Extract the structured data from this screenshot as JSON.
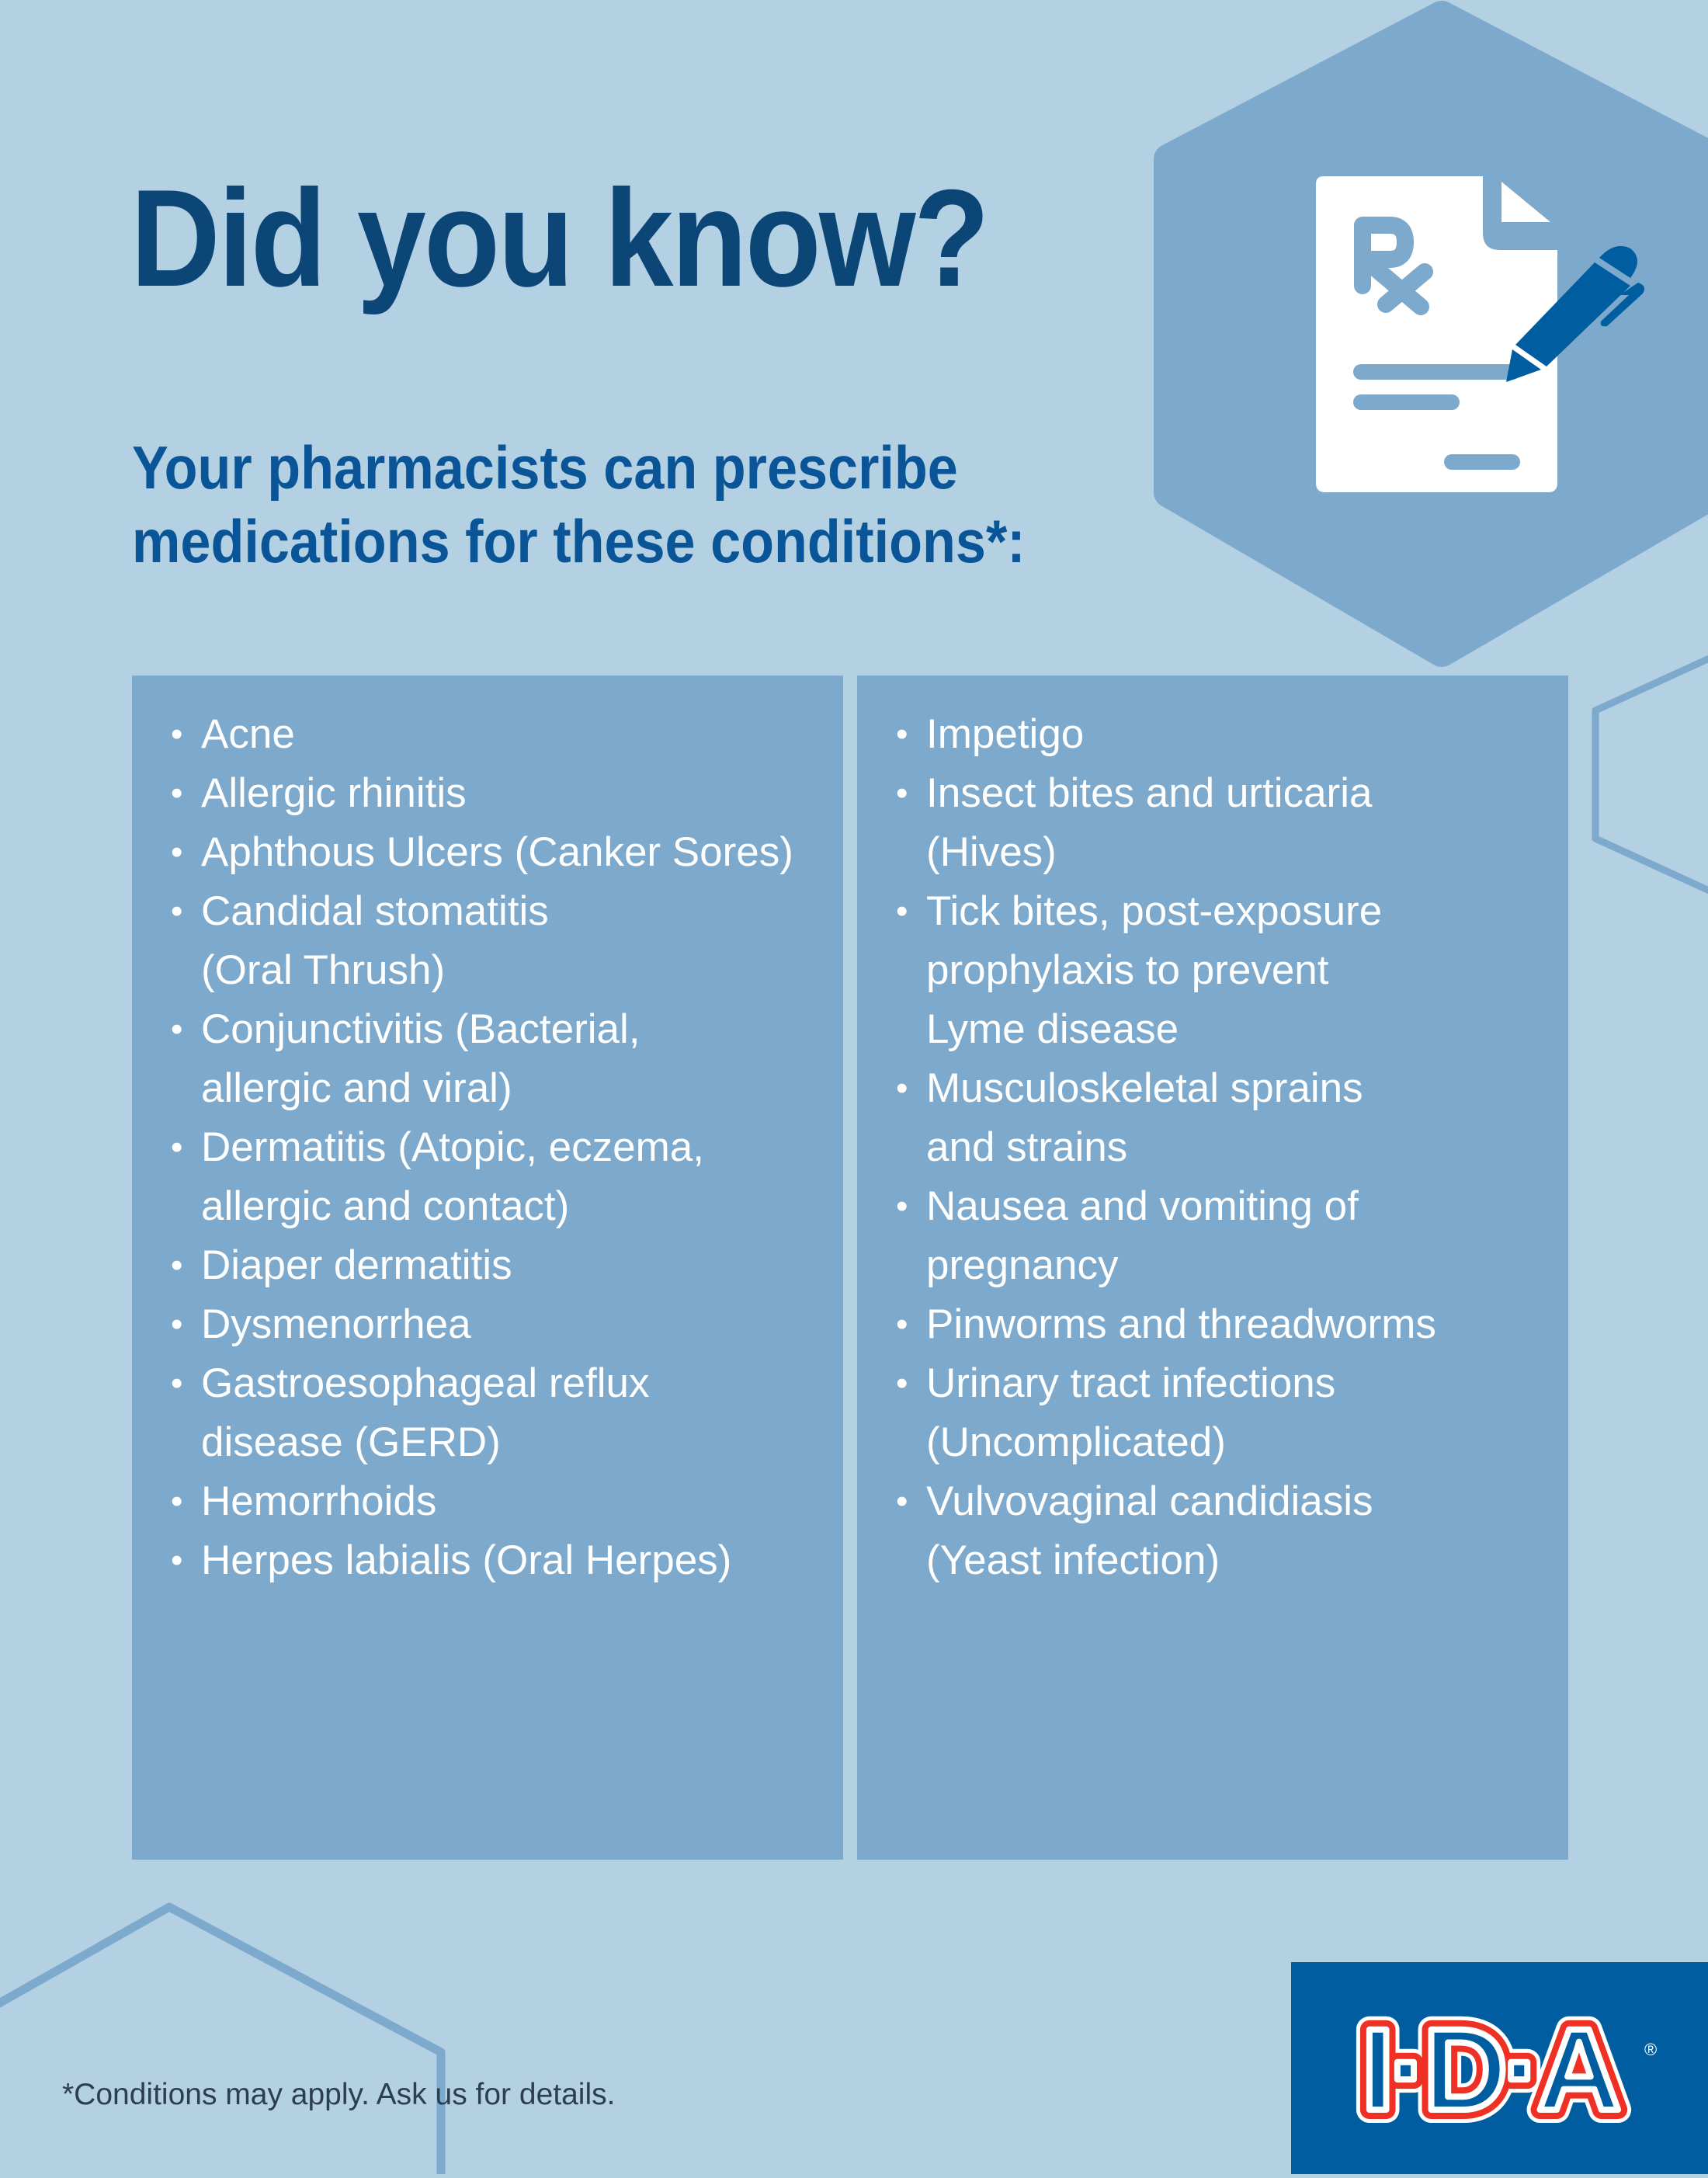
{
  "colors": {
    "background": "#b4d0e3",
    "panel": "#7da9cc",
    "title": "#0b4677",
    "subtitle": "#0a5597",
    "logo_box": "#005d9f",
    "logo_red": "#ee3124",
    "pen": "#005d9f"
  },
  "header": {
    "title": "Did you know?",
    "subtitle_lines": [
      "Your pharmacists can prescribe",
      "medications for these conditions*:"
    ]
  },
  "icons": {
    "document": "prescription-document-icon",
    "pen": "pen-icon"
  },
  "conditions": {
    "left": [
      {
        "lines": [
          "Acne"
        ]
      },
      {
        "lines": [
          "Allergic rhinitis"
        ]
      },
      {
        "lines": [
          "Aphthous Ulcers (Canker Sores)"
        ]
      },
      {
        "lines": [
          "Candidal stomatitis",
          "(Oral Thrush)"
        ]
      },
      {
        "lines": [
          "Conjunctivitis (Bacterial,",
          "allergic and viral)"
        ]
      },
      {
        "lines": [
          "Dermatitis (Atopic, eczema,",
          "allergic and contact)"
        ]
      },
      {
        "lines": [
          "Diaper dermatitis"
        ]
      },
      {
        "lines": [
          "Dysmenorrhea"
        ]
      },
      {
        "lines": [
          "Gastroesophageal reflux",
          "disease (GERD)"
        ]
      },
      {
        "lines": [
          "Hemorrhoids"
        ]
      },
      {
        "lines": [
          "Herpes labialis (Oral Herpes)"
        ]
      }
    ],
    "right": [
      {
        "lines": [
          "Impetigo"
        ]
      },
      {
        "lines": [
          "Insect bites and urticaria",
          "(Hives)"
        ]
      },
      {
        "lines": [
          "Tick bites, post-exposure",
          "prophylaxis to prevent",
          "Lyme disease"
        ]
      },
      {
        "lines": [
          "Musculoskeletal sprains",
          "and strains"
        ]
      },
      {
        "lines": [
          "Nausea and vomiting of",
          "pregnancy"
        ]
      },
      {
        "lines": [
          "Pinworms and threadworms"
        ]
      },
      {
        "lines": [
          "Urinary tract infections",
          "(Uncomplicated)"
        ]
      },
      {
        "lines": [
          "Vulvovaginal candidiasis",
          "(Yeast infection)"
        ]
      }
    ]
  },
  "bullet": "•",
  "footnote": "*Conditions may apply. Ask us for details.",
  "logo": {
    "text": "I·D·A",
    "registered": "®"
  }
}
